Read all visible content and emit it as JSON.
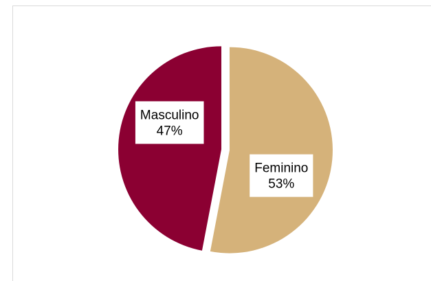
{
  "chart_data": {
    "type": "pie",
    "categories": [
      "Feminino",
      "Masculino"
    ],
    "values": [
      53,
      47
    ],
    "value_labels": [
      "53%",
      "47%"
    ],
    "colors": [
      "#d5b27a",
      "#8b0032"
    ]
  }
}
